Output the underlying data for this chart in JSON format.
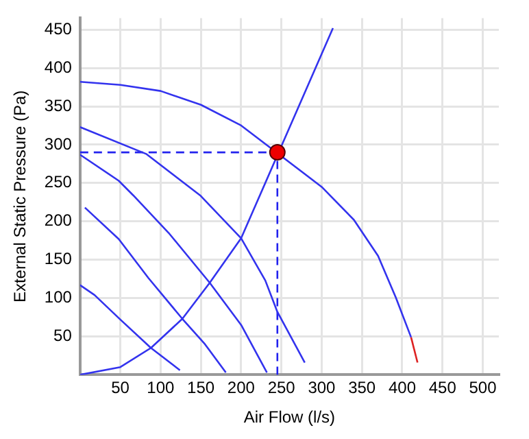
{
  "chart_data": {
    "type": "line",
    "xlabel": "Air Flow (l/s)",
    "ylabel": "External Static Pressure (Pa)",
    "xlim": [
      0,
      520
    ],
    "ylim": [
      0,
      465
    ],
    "xticks": [
      50,
      100,
      150,
      200,
      250,
      300,
      350,
      400,
      450,
      500
    ],
    "yticks": [
      50,
      100,
      150,
      200,
      250,
      300,
      350,
      400,
      450
    ],
    "grid": true,
    "legend": false,
    "marker": "none",
    "line_style": "solid",
    "series": [
      {
        "color": "#3333ee",
        "x": [
          0,
          50,
          100,
          150,
          200,
          300,
          340,
          370,
          392,
          411
        ],
        "values": [
          382,
          378,
          370,
          352,
          325,
          245,
          202,
          155,
          101,
          49
        ]
      },
      {
        "color": "#dd2222",
        "x": [
          411,
          419
        ],
        "values": [
          49,
          16
        ]
      },
      {
        "color": "#3333ee",
        "x": [
          0,
          82,
          149,
          200,
          230,
          245,
          279
        ],
        "values": [
          323,
          288,
          234,
          178,
          123,
          82,
          16
        ]
      },
      {
        "color": "#3333ee",
        "x": [
          0,
          48,
          66,
          110,
          161,
          200,
          232
        ],
        "values": [
          287,
          253,
          234,
          185,
          120,
          65,
          3
        ]
      },
      {
        "color": "#3333ee",
        "x": [
          6,
          48,
          85,
          127,
          155,
          181
        ],
        "values": [
          218,
          177,
          126,
          73,
          40,
          3
        ]
      },
      {
        "color": "#3333ee",
        "x": [
          0,
          18,
          50,
          88,
          124
        ],
        "values": [
          117,
          104,
          72,
          35,
          6
        ]
      },
      {
        "color": "#3333ee",
        "x": [
          0,
          50,
          88,
          127,
          161,
          200,
          314
        ],
        "values": [
          0,
          10,
          35,
          73,
          120,
          178,
          452
        ]
      },
      {
        "color": "#2222ee",
        "x": [
          0,
          245
        ],
        "values": [
          290,
          290
        ],
        "line_style": "dashed"
      },
      {
        "color": "#2222ee",
        "x": [
          245,
          245
        ],
        "values": [
          0,
          290
        ],
        "line_style": "dashed"
      },
      {
        "type": "scatter",
        "color": "#ee0000",
        "x": [
          245
        ],
        "values": [
          290
        ],
        "marker": "circle"
      }
    ]
  }
}
